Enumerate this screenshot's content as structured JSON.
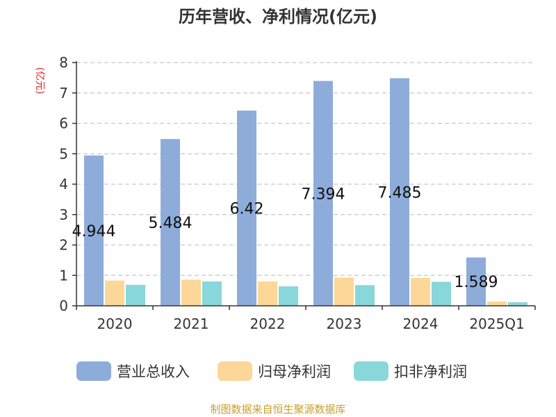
{
  "chart_data": {
    "type": "bar",
    "title": "历年营收、净利情况(亿元)",
    "ylabel": "(亿元)",
    "ylim": [
      0,
      8
    ],
    "yticks": [
      0,
      1,
      2,
      3,
      4,
      5,
      6,
      7,
      8
    ],
    "grid": true,
    "legend_position": "bottom",
    "categories": [
      "2020",
      "2021",
      "2022",
      "2023",
      "2024",
      "2025Q1"
    ],
    "series": [
      {
        "name": "营业总收入",
        "color": "#8eacda",
        "values": [
          4.944,
          5.484,
          6.42,
          7.394,
          7.485,
          1.589
        ],
        "labels": [
          "4.944",
          "5.484",
          "6.42",
          "7.394",
          "7.485",
          "1.589"
        ]
      },
      {
        "name": "归母净利润",
        "color": "#fdd797",
        "values": [
          0.83,
          0.86,
          0.8,
          0.93,
          0.92,
          0.14
        ]
      },
      {
        "name": "扣非净利润",
        "color": "#88d7da",
        "values": [
          0.69,
          0.8,
          0.64,
          0.68,
          0.79,
          0.12
        ]
      }
    ]
  },
  "footer": {
    "source": "制图数据来自恒生聚源数据库"
  }
}
